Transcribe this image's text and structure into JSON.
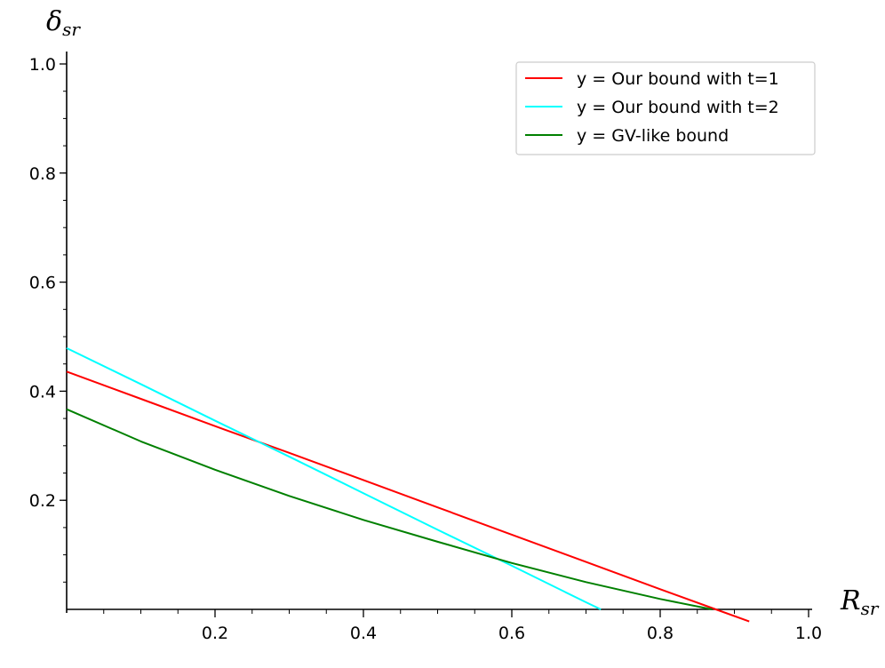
{
  "chart_data": {
    "type": "line",
    "title": "",
    "xlabel": "R",
    "xlabel_sub": "sr",
    "ylabel": "δ",
    "ylabel_sub": "sr",
    "xlim": [
      0,
      1.0
    ],
    "ylim": [
      0,
      1.0
    ],
    "x_ticks": [
      {
        "value": 0.2,
        "label": "0.2"
      },
      {
        "value": 0.4,
        "label": "0.4"
      },
      {
        "value": 0.6,
        "label": "0.6"
      },
      {
        "value": 0.8,
        "label": "0.8"
      },
      {
        "value": 1.0,
        "label": "1.0"
      }
    ],
    "y_ticks": [
      {
        "value": 0.2,
        "label": "0.2"
      },
      {
        "value": 0.4,
        "label": "0.4"
      },
      {
        "value": 0.6,
        "label": "0.6"
      },
      {
        "value": 0.8,
        "label": "0.8"
      },
      {
        "value": 1.0,
        "label": "1.0"
      }
    ],
    "minor_tick_step": 0.05,
    "grid": false,
    "legend_position": "top-right",
    "series": [
      {
        "name": "y = Our bound with t=1",
        "color": "#ff0000",
        "x": [
          0.0,
          0.1,
          0.2,
          0.3,
          0.4,
          0.5,
          0.6,
          0.7,
          0.8,
          0.875,
          0.92
        ],
        "y": [
          0.436,
          0.386,
          0.336,
          0.287,
          0.237,
          0.187,
          0.137,
          0.087,
          0.037,
          0.0,
          -0.022
        ]
      },
      {
        "name": "y = Our bound with t=2",
        "color": "#00ffff",
        "x": [
          0.0,
          0.1,
          0.2,
          0.3,
          0.4,
          0.5,
          0.6,
          0.7,
          0.72
        ],
        "y": [
          0.479,
          0.413,
          0.346,
          0.28,
          0.213,
          0.146,
          0.08,
          0.013,
          0.0
        ]
      },
      {
        "name": "y = GV-like bound",
        "color": "#008000",
        "x": [
          0.0,
          0.1,
          0.2,
          0.3,
          0.4,
          0.5,
          0.6,
          0.7,
          0.8,
          0.87
        ],
        "y": [
          0.367,
          0.308,
          0.256,
          0.208,
          0.164,
          0.124,
          0.085,
          0.05,
          0.019,
          0.0
        ]
      }
    ]
  }
}
